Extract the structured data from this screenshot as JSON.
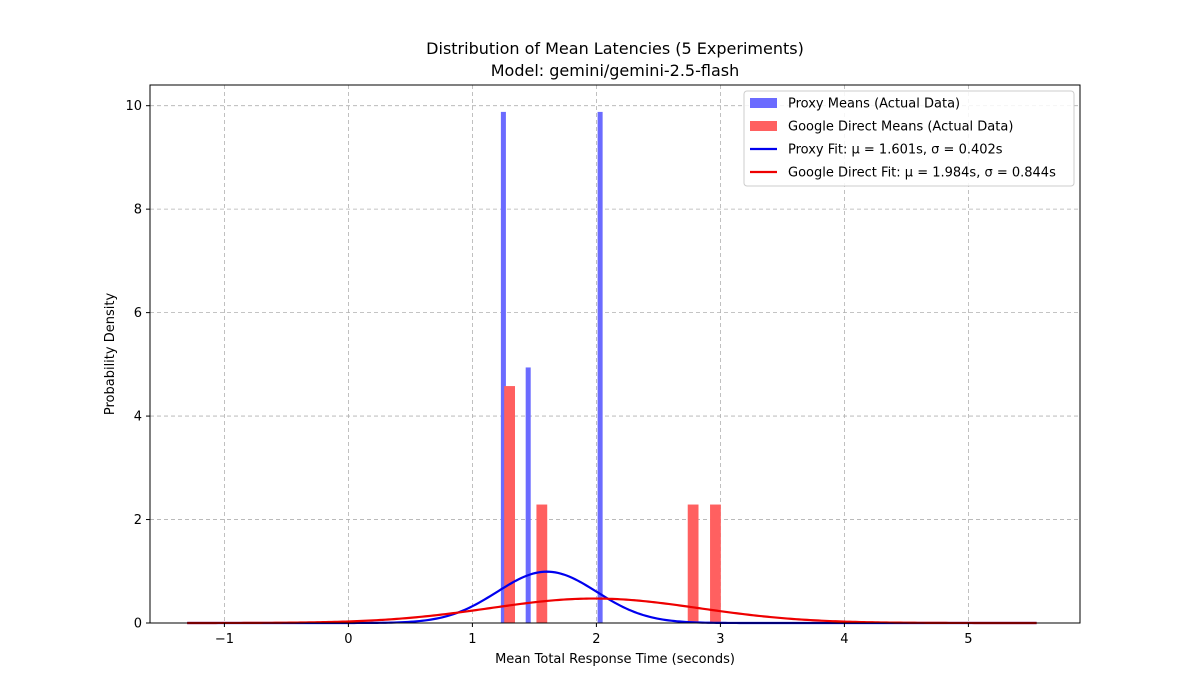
{
  "chart_data": {
    "type": "bar",
    "title": "Distribution of Mean Latencies (5 Experiments)",
    "subtitle": "Model: gemini/gemini-2.5-flash",
    "xlabel": "Mean Total Response Time (seconds)",
    "ylabel": "Probability Density",
    "xlim": [
      -1.6,
      5.9
    ],
    "ylim": [
      0,
      10.4
    ],
    "xticks": [
      -1,
      0,
      1,
      2,
      3,
      4,
      5
    ],
    "xtick_labels": [
      "−1",
      "0",
      "1",
      "2",
      "3",
      "4",
      "5"
    ],
    "yticks": [
      0,
      2,
      4,
      6,
      8,
      10
    ],
    "ytick_labels": [
      "0",
      "2",
      "4",
      "6",
      "8",
      "10"
    ],
    "grid": true,
    "legend_position": "top-right",
    "colors": {
      "proxy_bar": "#6b6bff",
      "google_bar": "#ff6060",
      "proxy_fit": "#0000ee",
      "google_fit": "#ee0000"
    },
    "histograms": [
      {
        "name": "Proxy Means (Actual Data)",
        "bar_width": 0.0405,
        "bars": [
          {
            "x": 1.25,
            "density": 9.88
          },
          {
            "x": 1.45,
            "density": 4.94
          },
          {
            "x": 2.03,
            "density": 9.88
          }
        ]
      },
      {
        "name": "Google Direct Means (Actual Data)",
        "bar_width": 0.087,
        "bars": [
          {
            "x": 1.3,
            "density": 4.58
          },
          {
            "x": 1.56,
            "density": 2.29
          },
          {
            "x": 2.78,
            "density": 2.29
          },
          {
            "x": 2.96,
            "density": 2.29
          }
        ]
      }
    ],
    "fits": [
      {
        "name": "Proxy Fit: μ = 1.601s, σ = 0.402s",
        "mu": 1.601,
        "sigma": 0.402,
        "x_range": [
          -1.3,
          5.55
        ]
      },
      {
        "name": "Google Direct Fit: μ = 1.984s, σ = 0.844s",
        "mu": 1.984,
        "sigma": 0.844,
        "x_range": [
          -1.3,
          5.55
        ]
      }
    ],
    "legend": [
      {
        "label": "Proxy Means (Actual Data)",
        "kind": "patch",
        "color_key": "proxy_bar"
      },
      {
        "label": "Google Direct Means (Actual Data)",
        "kind": "patch",
        "color_key": "google_bar"
      },
      {
        "label": "Proxy Fit: μ = 1.601s, σ = 0.402s",
        "kind": "line",
        "color_key": "proxy_fit"
      },
      {
        "label": "Google Direct Fit: μ = 1.984s, σ = 0.844s",
        "kind": "line",
        "color_key": "google_fit"
      }
    ]
  }
}
